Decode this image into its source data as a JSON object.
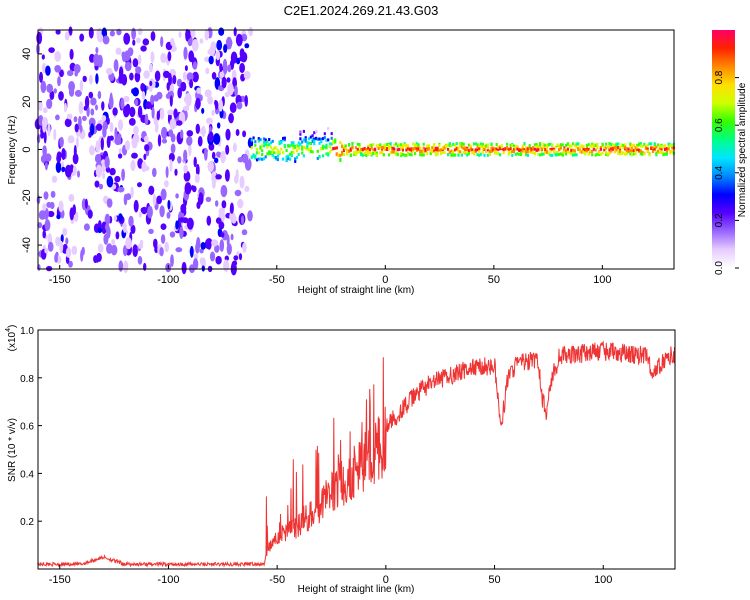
{
  "figure": {
    "title": "C2E1.2024.269.21.43.G03"
  },
  "chart_data": [
    {
      "type": "heatmap",
      "xlabel": "Height of straight line (km)",
      "ylabel": "Frequency (Hz)",
      "xlim": [
        -160,
        133
      ],
      "ylim": [
        -50,
        50
      ],
      "x_ticks": [
        "-150",
        "-100",
        "-50",
        "0",
        "50",
        "100"
      ],
      "y_ticks": [
        "40",
        "20",
        "0",
        "-20",
        "-40"
      ],
      "description_regions": {
        "noise_band_x": [
          -160,
          -62
        ],
        "signal_band_x": [
          -62,
          133
        ],
        "signal_center_frequency": 0
      },
      "colorbar": {
        "label": "Normalized spectral amplitude",
        "range": [
          0.0,
          1.0
        ],
        "ticks": [
          "0.0",
          "0.2",
          "0.4",
          "0.6",
          "0.8"
        ],
        "colors": [
          "#ffffff",
          "#e6ccff",
          "#9966ff",
          "#5500ff",
          "#0000ff",
          "#0088ff",
          "#00e5ff",
          "#00ff88",
          "#33ff00",
          "#ccff00",
          "#ffe000",
          "#ff8800",
          "#ff2200",
          "#ff0066"
        ]
      }
    },
    {
      "type": "line",
      "xlabel": "Height of straight line (km)",
      "ylabel": "SNR (10 * v/v)",
      "y_multiplier_label": "(x10",
      "y_multiplier_exponent": "4",
      "y_multiplier_close": ")",
      "xlim": [
        -160,
        133
      ],
      "ylim": [
        0,
        1.0
      ],
      "x_ticks": [
        "-150",
        "-100",
        "-50",
        "0",
        "50",
        "100"
      ],
      "y_ticks": [
        "1.0",
        "0.8",
        "0.6",
        "0.4",
        "0.2"
      ],
      "series": [
        {
          "color": "#ee3333",
          "x": [
            -160,
            -140,
            -130,
            -120,
            -100,
            -80,
            -60,
            -56,
            -54,
            -50,
            -45,
            -40,
            -35,
            -30,
            -25,
            -20,
            -15,
            -10,
            -5,
            0,
            5,
            10,
            15,
            20,
            30,
            40,
            50,
            53,
            56,
            60,
            70,
            72,
            74,
            76,
            80,
            90,
            100,
            110,
            120,
            123,
            126,
            130,
            133
          ],
          "values": [
            0.02,
            0.02,
            0.05,
            0.02,
            0.02,
            0.02,
            0.02,
            0.02,
            0.1,
            0.15,
            0.18,
            0.2,
            0.25,
            0.3,
            0.35,
            0.4,
            0.45,
            0.5,
            0.55,
            0.6,
            0.65,
            0.7,
            0.75,
            0.78,
            0.82,
            0.85,
            0.86,
            0.6,
            0.8,
            0.87,
            0.88,
            0.72,
            0.66,
            0.8,
            0.9,
            0.91,
            0.92,
            0.91,
            0.9,
            0.82,
            0.86,
            0.9,
            0.9
          ]
        }
      ]
    }
  ]
}
